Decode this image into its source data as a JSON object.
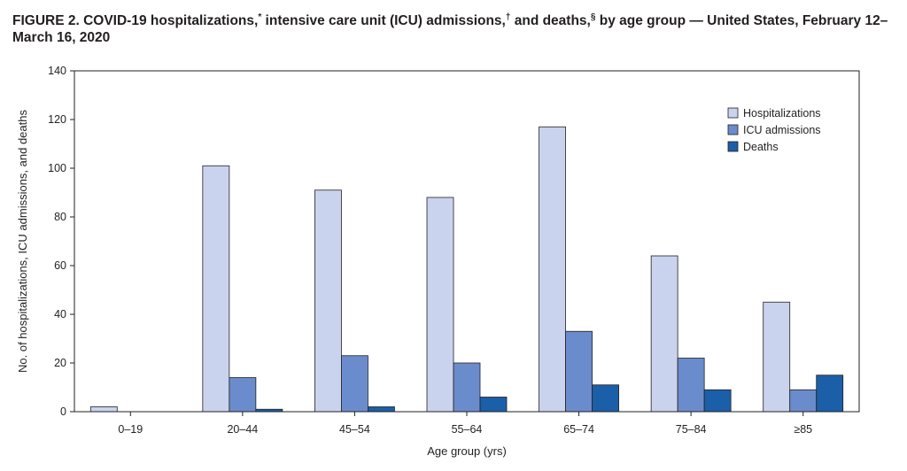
{
  "figure": {
    "title_main": "FIGURE 2. COVID-19 hospitalizations,",
    "mark_hosp": "*",
    "title_icu": " intensive care unit (ICU) admissions,",
    "mark_icu": "†",
    "title_deaths": " and deaths,",
    "mark_deaths": "§",
    "title_rest": " by age group — United States, February 12–March 16, 2020"
  },
  "chart_data": {
    "type": "bar",
    "title": "FIGURE 2. COVID-19 hospitalizations,* intensive care unit (ICU) admissions,† and deaths,§ by age group — United States, February 12–March 16, 2020",
    "xlabel": "Age group (yrs)",
    "ylabel": "No. of hospitalizations, ICU admissions, and deaths",
    "ylim": [
      0,
      140
    ],
    "yticks": [
      0,
      20,
      40,
      60,
      80,
      100,
      120,
      140
    ],
    "categories": [
      "0–19",
      "20–44",
      "45–54",
      "55–64",
      "65–74",
      "75–84",
      "≥85"
    ],
    "series": [
      {
        "name": "Hospitalizations",
        "color": "#c9d3ee",
        "values": [
          2,
          101,
          91,
          88,
          117,
          64,
          45
        ]
      },
      {
        "name": "ICU admissions",
        "color": "#6b8ccc",
        "values": [
          0,
          14,
          23,
          20,
          33,
          22,
          9
        ]
      },
      {
        "name": "Deaths",
        "color": "#1b5fa8",
        "values": [
          0,
          1,
          2,
          6,
          11,
          9,
          15
        ]
      }
    ],
    "legend_position": "top-right",
    "grid": false
  }
}
